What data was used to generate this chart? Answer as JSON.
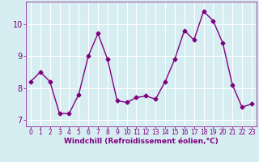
{
  "x": [
    0,
    1,
    2,
    3,
    4,
    5,
    6,
    7,
    8,
    9,
    10,
    11,
    12,
    13,
    14,
    15,
    16,
    17,
    18,
    19,
    20,
    21,
    22,
    23
  ],
  "y": [
    8.2,
    8.5,
    8.2,
    7.2,
    7.2,
    7.8,
    9.0,
    9.7,
    8.9,
    7.6,
    7.55,
    7.7,
    7.75,
    7.65,
    8.2,
    8.9,
    9.8,
    9.5,
    10.4,
    10.1,
    9.4,
    8.1,
    7.4,
    7.5
  ],
  "line_color": "#800080",
  "marker": "D",
  "marker_size": 2.5,
  "bg_color": "#d6eef2",
  "grid_color": "#ffffff",
  "xlabel": "Windchill (Refroidissement éolien,°C)",
  "xlabel_color": "#800080",
  "tick_color": "#800080",
  "ylim": [
    6.8,
    10.7
  ],
  "yticks": [
    7,
    8,
    9,
    10
  ],
  "xlim": [
    -0.5,
    23.5
  ],
  "xticks": [
    0,
    1,
    2,
    3,
    4,
    5,
    6,
    7,
    8,
    9,
    10,
    11,
    12,
    13,
    14,
    15,
    16,
    17,
    18,
    19,
    20,
    21,
    22,
    23
  ],
  "xlabel_fontsize": 6.5,
  "xtick_fontsize": 5.5,
  "ytick_fontsize": 7
}
